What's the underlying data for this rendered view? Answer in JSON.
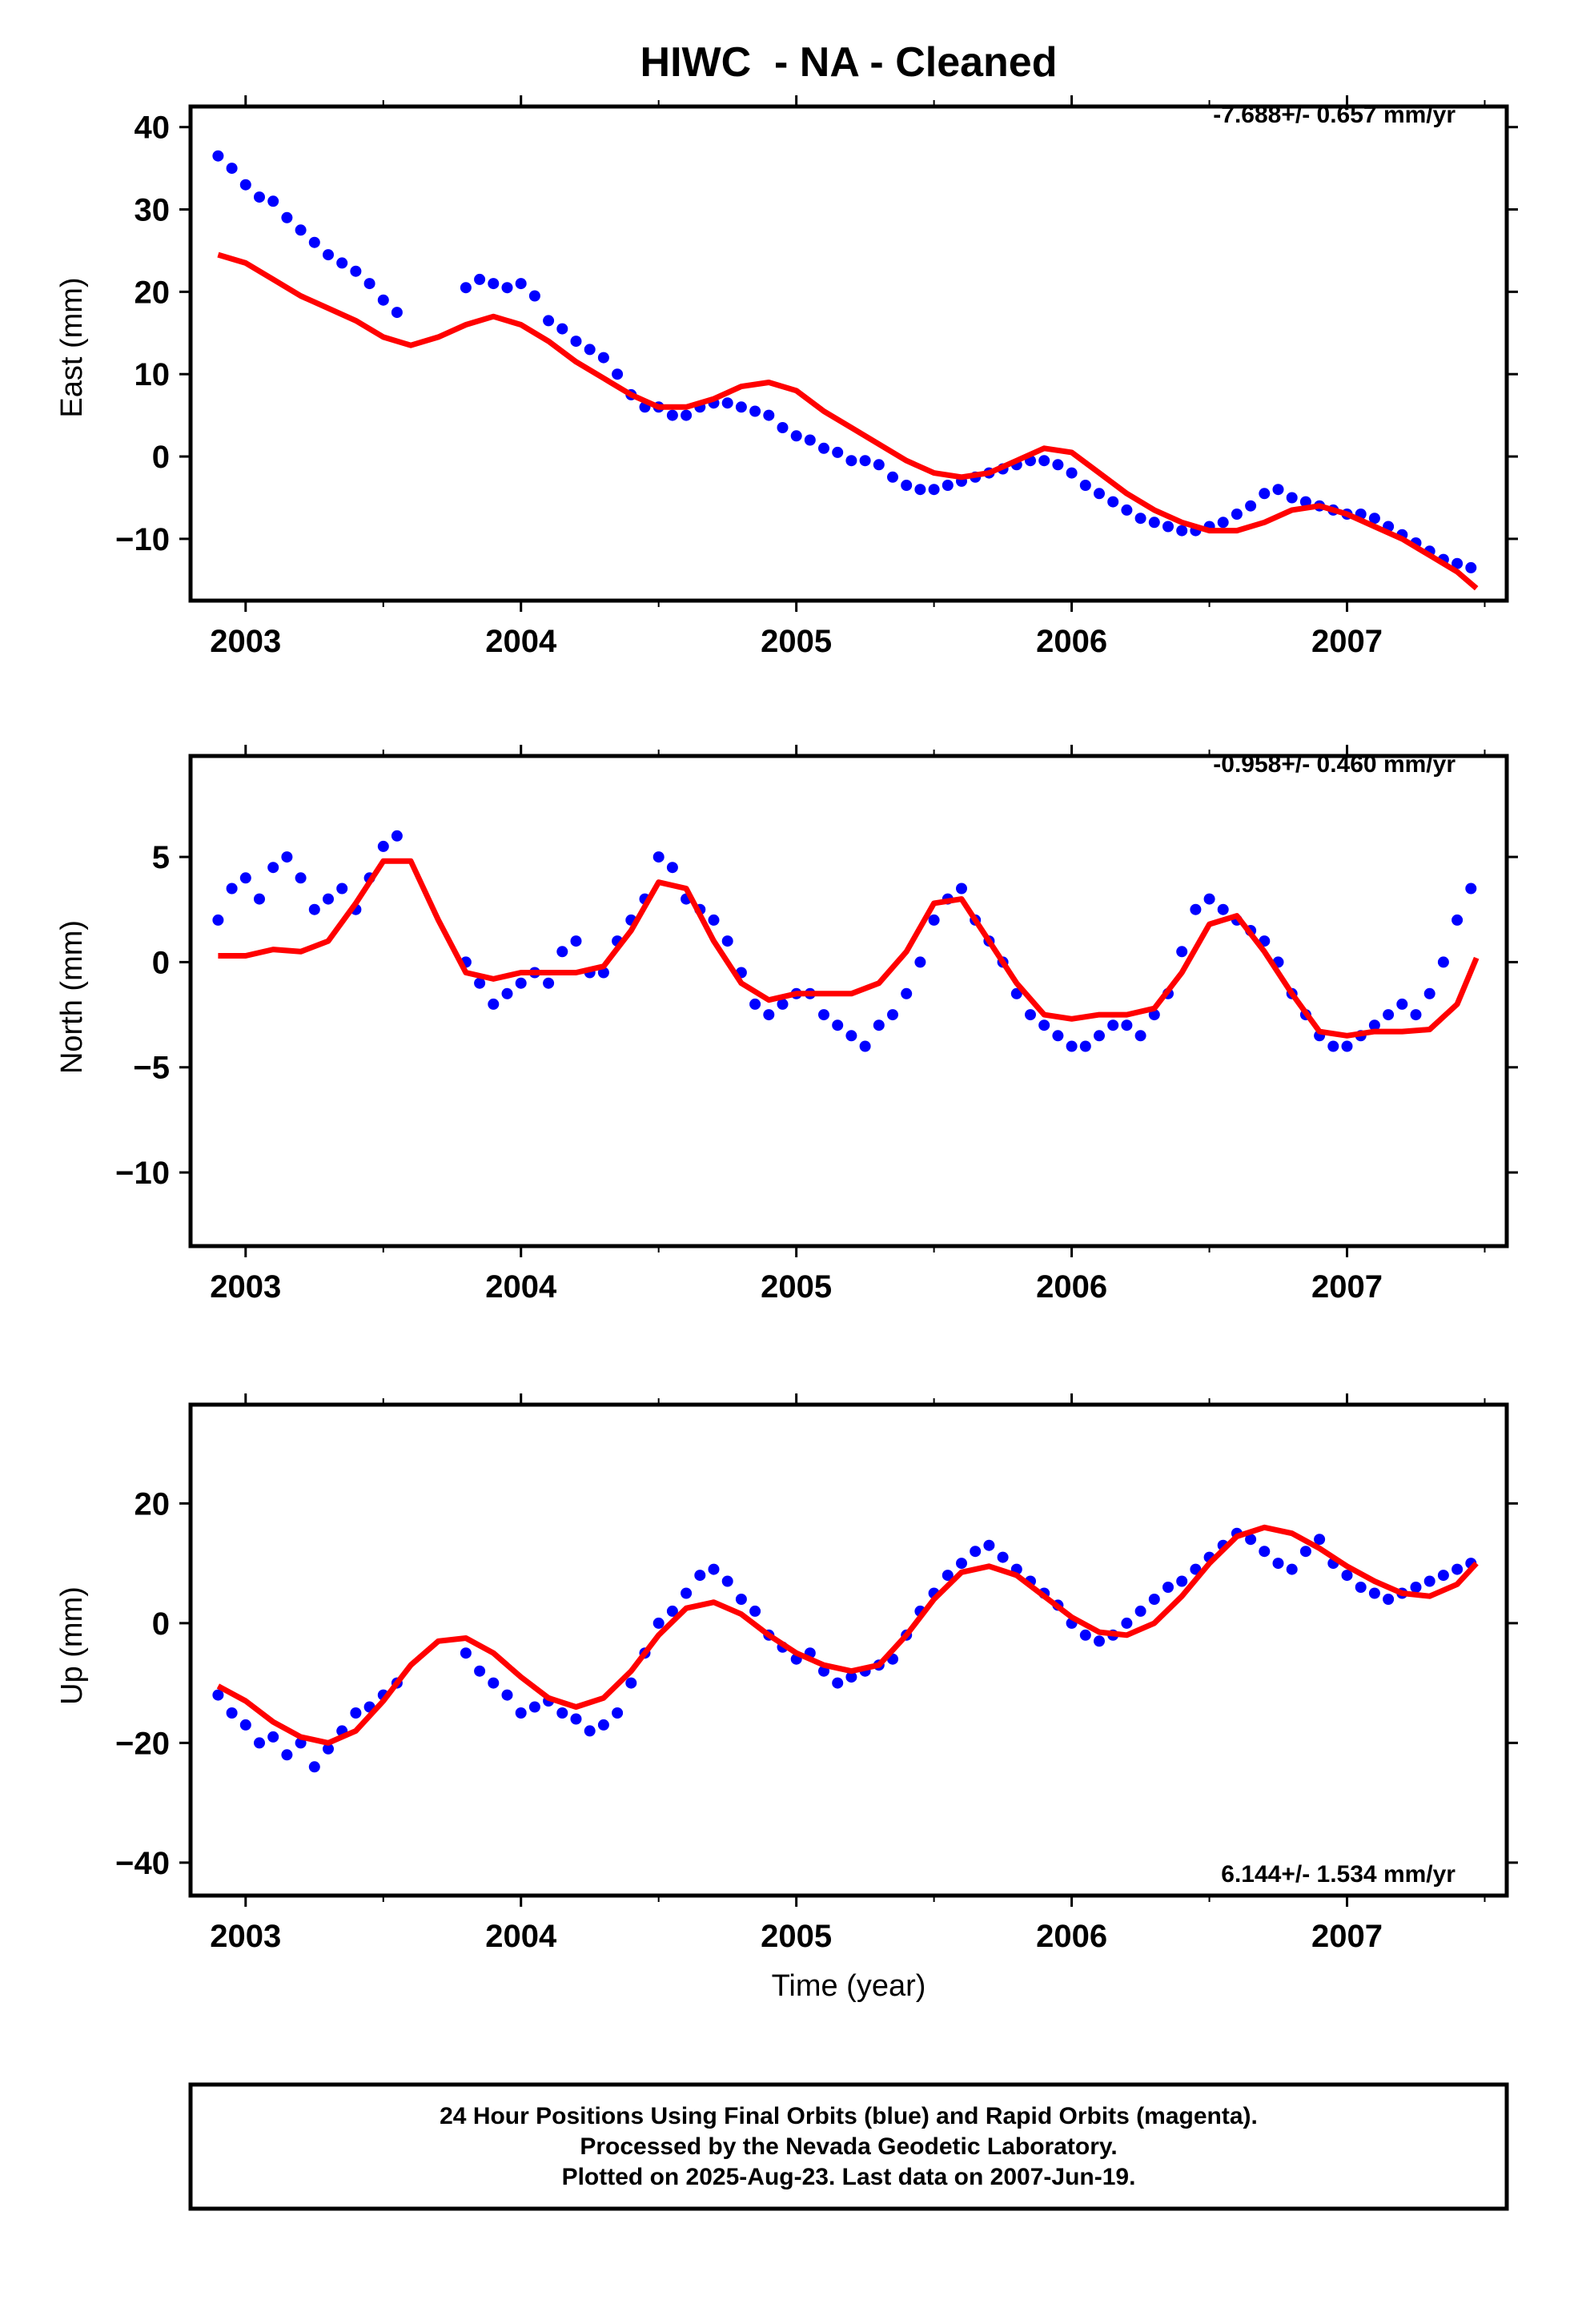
{
  "title": "HIWC  - NA - Cleaned",
  "xlabel": "Time (year)",
  "footer": {
    "line1": "24 Hour Positions Using Final Orbits (blue) and Rapid Orbits (magenta).",
    "line2": "Processed by the Nevada Geodetic Laboratory.",
    "line3": "Plotted on 2025-Aug-23. Last data on 2007-Jun-19."
  },
  "colors": {
    "points": "#0000ff",
    "fit": "#ff0000",
    "frame": "#000000"
  },
  "chart_data": [
    {
      "type": "scatter",
      "ylabel": "East (mm)",
      "rate_label": "-7.688+/- 0.657 mm/yr",
      "rate_position": "top-right",
      "xlim": [
        2002.8,
        2007.58
      ],
      "ylim": [
        -17.5,
        42.5
      ],
      "xticks": [
        2003,
        2004,
        2005,
        2006,
        2007
      ],
      "yticks": [
        -10,
        0,
        10,
        20,
        30,
        40
      ],
      "point_series": {
        "name": "Final Orbits (blue)",
        "x": [
          2002.9,
          2002.95,
          2003.0,
          2003.05,
          2003.1,
          2003.15,
          2003.2,
          2003.25,
          2003.3,
          2003.35,
          2003.4,
          2003.45,
          2003.5,
          2003.55,
          2003.8,
          2003.85,
          2003.9,
          2003.95,
          2004.0,
          2004.05,
          2004.1,
          2004.15,
          2004.2,
          2004.25,
          2004.3,
          2004.35,
          2004.4,
          2004.45,
          2004.5,
          2004.55,
          2004.6,
          2004.65,
          2004.7,
          2004.75,
          2004.8,
          2004.85,
          2004.9,
          2004.95,
          2005.0,
          2005.05,
          2005.1,
          2005.15,
          2005.2,
          2005.25,
          2005.3,
          2005.35,
          2005.4,
          2005.45,
          2005.5,
          2005.55,
          2005.6,
          2005.65,
          2005.7,
          2005.75,
          2005.8,
          2005.85,
          2005.9,
          2005.95,
          2006.0,
          2006.05,
          2006.1,
          2006.15,
          2006.2,
          2006.25,
          2006.3,
          2006.35,
          2006.4,
          2006.45,
          2006.5,
          2006.55,
          2006.6,
          2006.65,
          2006.7,
          2006.75,
          2006.8,
          2006.85,
          2006.9,
          2006.95,
          2007.0,
          2007.05,
          2007.1,
          2007.15,
          2007.2,
          2007.25,
          2007.3,
          2007.35,
          2007.4,
          2007.45
        ],
        "y": [
          36.5,
          35.0,
          33.0,
          31.5,
          31.0,
          29.0,
          27.5,
          26.0,
          24.5,
          23.5,
          22.5,
          21.0,
          19.0,
          17.5,
          20.5,
          21.5,
          21.0,
          20.5,
          21.0,
          19.5,
          16.5,
          15.5,
          14.0,
          13.0,
          12.0,
          10.0,
          7.5,
          6.0,
          6.0,
          5.0,
          5.0,
          6.0,
          6.5,
          6.5,
          6.0,
          5.5,
          5.0,
          3.5,
          2.5,
          2.0,
          1.0,
          0.5,
          -0.5,
          -0.5,
          -1.0,
          -2.5,
          -3.5,
          -4.0,
          -4.0,
          -3.5,
          -3.0,
          -2.5,
          -2.0,
          -1.5,
          -1.0,
          -0.5,
          -0.5,
          -1.0,
          -2.0,
          -3.5,
          -4.5,
          -5.5,
          -6.5,
          -7.5,
          -8.0,
          -8.5,
          -9.0,
          -9.0,
          -8.5,
          -8.0,
          -7.0,
          -6.0,
          -4.5,
          -4.0,
          -5.0,
          -5.5,
          -6.0,
          -6.5,
          -7.0,
          -7.0,
          -7.5,
          -8.5,
          -9.5,
          -10.5,
          -11.5,
          -12.5,
          -13.0,
          -13.5
        ]
      },
      "fit_series": {
        "name": "model fit",
        "x": [
          2002.9,
          2003.0,
          2003.1,
          2003.2,
          2003.3,
          2003.4,
          2003.5,
          2003.6,
          2003.7,
          2003.8,
          2003.9,
          2004.0,
          2004.1,
          2004.2,
          2004.3,
          2004.4,
          2004.5,
          2004.6,
          2004.7,
          2004.8,
          2004.9,
          2005.0,
          2005.1,
          2005.2,
          2005.3,
          2005.4,
          2005.5,
          2005.6,
          2005.7,
          2005.8,
          2005.9,
          2006.0,
          2006.1,
          2006.2,
          2006.3,
          2006.4,
          2006.5,
          2006.6,
          2006.7,
          2006.8,
          2006.9,
          2007.0,
          2007.1,
          2007.2,
          2007.3,
          2007.4,
          2007.47
        ],
        "y": [
          24.5,
          23.5,
          21.5,
          19.5,
          18.0,
          16.5,
          14.5,
          13.5,
          14.5,
          16.0,
          17.0,
          16.0,
          14.0,
          11.5,
          9.5,
          7.5,
          6.0,
          6.0,
          7.0,
          8.5,
          9.0,
          8.0,
          5.5,
          3.5,
          1.5,
          -0.5,
          -2.0,
          -2.5,
          -2.0,
          -0.5,
          1.0,
          0.5,
          -2.0,
          -4.5,
          -6.5,
          -8.0,
          -9.0,
          -9.0,
          -8.0,
          -6.5,
          -6.0,
          -7.0,
          -8.5,
          -10.0,
          -12.0,
          -14.0,
          -16.0
        ]
      }
    },
    {
      "type": "scatter",
      "ylabel": "North (mm)",
      "rate_label": "-0.958+/- 0.460 mm/yr",
      "rate_position": "top-right",
      "xlim": [
        2002.8,
        2007.58
      ],
      "ylim": [
        -13.5,
        9.8
      ],
      "xticks": [
        2003,
        2004,
        2005,
        2006,
        2007
      ],
      "yticks": [
        -10,
        -5,
        0,
        5
      ],
      "point_series": {
        "name": "Final Orbits (blue)",
        "x": [
          2002.9,
          2002.95,
          2003.0,
          2003.05,
          2003.1,
          2003.15,
          2003.2,
          2003.25,
          2003.3,
          2003.35,
          2003.4,
          2003.45,
          2003.5,
          2003.55,
          2003.8,
          2003.85,
          2003.9,
          2003.95,
          2004.0,
          2004.05,
          2004.1,
          2004.15,
          2004.2,
          2004.25,
          2004.3,
          2004.35,
          2004.4,
          2004.45,
          2004.5,
          2004.55,
          2004.6,
          2004.65,
          2004.7,
          2004.75,
          2004.8,
          2004.85,
          2004.9,
          2004.95,
          2005.0,
          2005.05,
          2005.1,
          2005.15,
          2005.2,
          2005.25,
          2005.3,
          2005.35,
          2005.4,
          2005.45,
          2005.5,
          2005.55,
          2005.6,
          2005.65,
          2005.7,
          2005.75,
          2005.8,
          2005.85,
          2005.9,
          2005.95,
          2006.0,
          2006.05,
          2006.1,
          2006.15,
          2006.2,
          2006.25,
          2006.3,
          2006.35,
          2006.4,
          2006.45,
          2006.5,
          2006.55,
          2006.6,
          2006.65,
          2006.7,
          2006.75,
          2006.8,
          2006.85,
          2006.9,
          2006.95,
          2007.0,
          2007.05,
          2007.1,
          2007.15,
          2007.2,
          2007.25,
          2007.3,
          2007.35,
          2007.4,
          2007.45
        ],
        "y": [
          2.0,
          3.5,
          4.0,
          3.0,
          4.5,
          5.0,
          4.0,
          2.5,
          3.0,
          3.5,
          2.5,
          4.0,
          5.5,
          6.0,
          0.0,
          -1.0,
          -2.0,
          -1.5,
          -1.0,
          -0.5,
          -1.0,
          0.5,
          1.0,
          -0.5,
          -0.5,
          1.0,
          2.0,
          3.0,
          5.0,
          4.5,
          3.0,
          2.5,
          2.0,
          1.0,
          -0.5,
          -2.0,
          -2.5,
          -2.0,
          -1.5,
          -1.5,
          -2.5,
          -3.0,
          -3.5,
          -4.0,
          -3.0,
          -2.5,
          -1.5,
          0.0,
          2.0,
          3.0,
          3.5,
          2.0,
          1.0,
          0.0,
          -1.5,
          -2.5,
          -3.0,
          -3.5,
          -4.0,
          -4.0,
          -3.5,
          -3.0,
          -3.0,
          -3.5,
          -2.5,
          -1.5,
          0.5,
          2.5,
          3.0,
          2.5,
          2.0,
          1.5,
          1.0,
          0.0,
          -1.5,
          -2.5,
          -3.5,
          -4.0,
          -4.0,
          -3.5,
          -3.0,
          -2.5,
          -2.0,
          -2.5,
          -1.5,
          0.0,
          2.0,
          3.5
        ]
      },
      "fit_series": {
        "name": "model fit",
        "x": [
          2002.9,
          2003.0,
          2003.1,
          2003.2,
          2003.3,
          2003.4,
          2003.5,
          2003.6,
          2003.7,
          2003.8,
          2003.9,
          2004.0,
          2004.1,
          2004.2,
          2004.3,
          2004.4,
          2004.5,
          2004.6,
          2004.7,
          2004.8,
          2004.9,
          2005.0,
          2005.1,
          2005.2,
          2005.3,
          2005.4,
          2005.5,
          2005.6,
          2005.7,
          2005.8,
          2005.9,
          2006.0,
          2006.1,
          2006.2,
          2006.3,
          2006.4,
          2006.5,
          2006.6,
          2006.7,
          2006.8,
          2006.9,
          2007.0,
          2007.1,
          2007.2,
          2007.3,
          2007.4,
          2007.47
        ],
        "y": [
          0.3,
          0.3,
          0.6,
          0.5,
          1.0,
          2.8,
          4.8,
          4.8,
          2.0,
          -0.5,
          -0.8,
          -0.5,
          -0.5,
          -0.5,
          -0.2,
          1.5,
          3.8,
          3.5,
          1.0,
          -1.0,
          -1.8,
          -1.5,
          -1.5,
          -1.5,
          -1.0,
          0.5,
          2.8,
          3.0,
          1.0,
          -1.0,
          -2.5,
          -2.7,
          -2.5,
          -2.5,
          -2.2,
          -0.5,
          1.8,
          2.2,
          0.5,
          -1.5,
          -3.3,
          -3.5,
          -3.3,
          -3.3,
          -3.2,
          -2.0,
          0.2
        ]
      }
    },
    {
      "type": "scatter",
      "ylabel": "Up (mm)",
      "rate_label": "6.144+/- 1.534 mm/yr",
      "rate_position": "bottom-right",
      "xlim": [
        2002.8,
        2007.58
      ],
      "ylim": [
        -45.5,
        36.5
      ],
      "xticks": [
        2003,
        2004,
        2005,
        2006,
        2007
      ],
      "yticks": [
        -40,
        -20,
        0,
        20
      ],
      "point_series": {
        "name": "Final Orbits (blue)",
        "x": [
          2002.9,
          2002.95,
          2003.0,
          2003.05,
          2003.1,
          2003.15,
          2003.2,
          2003.25,
          2003.3,
          2003.35,
          2003.4,
          2003.45,
          2003.5,
          2003.55,
          2003.8,
          2003.85,
          2003.9,
          2003.95,
          2004.0,
          2004.05,
          2004.1,
          2004.15,
          2004.2,
          2004.25,
          2004.3,
          2004.35,
          2004.4,
          2004.45,
          2004.5,
          2004.55,
          2004.6,
          2004.65,
          2004.7,
          2004.75,
          2004.8,
          2004.85,
          2004.9,
          2004.95,
          2005.0,
          2005.05,
          2005.1,
          2005.15,
          2005.2,
          2005.25,
          2005.3,
          2005.35,
          2005.4,
          2005.45,
          2005.5,
          2005.55,
          2005.6,
          2005.65,
          2005.7,
          2005.75,
          2005.8,
          2005.85,
          2005.9,
          2005.95,
          2006.0,
          2006.05,
          2006.1,
          2006.15,
          2006.2,
          2006.25,
          2006.3,
          2006.35,
          2006.4,
          2006.45,
          2006.5,
          2006.55,
          2006.6,
          2006.65,
          2006.7,
          2006.75,
          2006.8,
          2006.85,
          2006.9,
          2006.95,
          2007.0,
          2007.05,
          2007.1,
          2007.15,
          2007.2,
          2007.25,
          2007.3,
          2007.35,
          2007.4,
          2007.45
        ],
        "y": [
          -12.0,
          -15.0,
          -17.0,
          -20.0,
          -19.0,
          -22.0,
          -20.0,
          -24.0,
          -21.0,
          -18.0,
          -15.0,
          -14.0,
          -12.0,
          -10.0,
          -5.0,
          -8.0,
          -10.0,
          -12.0,
          -15.0,
          -14.0,
          -13.0,
          -15.0,
          -16.0,
          -18.0,
          -17.0,
          -15.0,
          -10.0,
          -5.0,
          0.0,
          2.0,
          5.0,
          8.0,
          9.0,
          7.0,
          4.0,
          2.0,
          -2.0,
          -4.0,
          -6.0,
          -5.0,
          -8.0,
          -10.0,
          -9.0,
          -8.0,
          -7.0,
          -6.0,
          -2.0,
          2.0,
          5.0,
          8.0,
          10.0,
          12.0,
          13.0,
          11.0,
          9.0,
          7.0,
          5.0,
          3.0,
          0.0,
          -2.0,
          -3.0,
          -2.0,
          0.0,
          2.0,
          4.0,
          6.0,
          7.0,
          9.0,
          11.0,
          13.0,
          15.0,
          14.0,
          12.0,
          10.0,
          9.0,
          12.0,
          14.0,
          10.0,
          8.0,
          6.0,
          5.0,
          4.0,
          5.0,
          6.0,
          7.0,
          8.0,
          9.0,
          10.0
        ]
      },
      "fit_series": {
        "name": "model fit",
        "x": [
          2002.9,
          2003.0,
          2003.1,
          2003.2,
          2003.3,
          2003.4,
          2003.5,
          2003.6,
          2003.7,
          2003.8,
          2003.9,
          2004.0,
          2004.1,
          2004.2,
          2004.3,
          2004.4,
          2004.5,
          2004.6,
          2004.7,
          2004.8,
          2004.9,
          2005.0,
          2005.1,
          2005.2,
          2005.3,
          2005.4,
          2005.5,
          2005.6,
          2005.7,
          2005.8,
          2005.9,
          2006.0,
          2006.1,
          2006.2,
          2006.3,
          2006.4,
          2006.5,
          2006.6,
          2006.7,
          2006.8,
          2006.9,
          2007.0,
          2007.1,
          2007.2,
          2007.3,
          2007.4,
          2007.47
        ],
        "y": [
          -10.5,
          -13.0,
          -16.5,
          -19.0,
          -20.0,
          -18.0,
          -13.0,
          -7.0,
          -3.0,
          -2.5,
          -5.0,
          -9.0,
          -12.5,
          -14.0,
          -12.5,
          -8.0,
          -2.0,
          2.5,
          3.5,
          1.5,
          -2.0,
          -5.0,
          -7.0,
          -8.0,
          -7.0,
          -2.0,
          4.0,
          8.5,
          9.5,
          8.0,
          4.5,
          1.0,
          -1.5,
          -2.0,
          0.0,
          4.5,
          10.0,
          14.5,
          16.0,
          15.0,
          12.5,
          9.5,
          7.0,
          5.0,
          4.5,
          6.5,
          10.0
        ]
      }
    }
  ]
}
